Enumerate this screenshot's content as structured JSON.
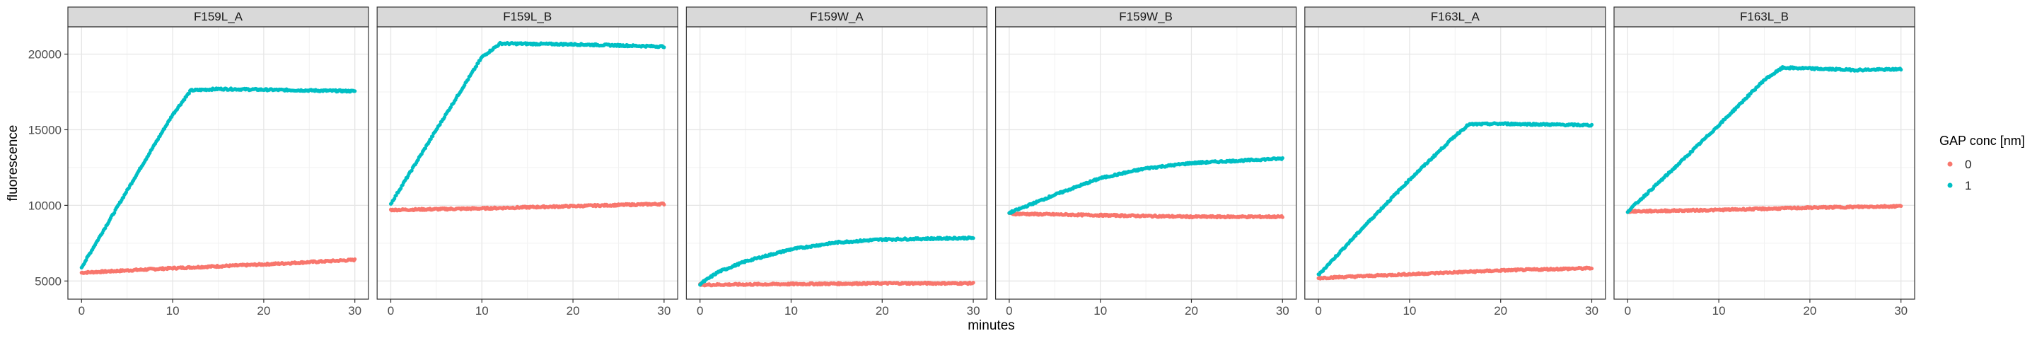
{
  "chart_data": {
    "type": "scatter",
    "facets": [
      "F159L_A",
      "F159L_B",
      "F159W_A",
      "F159W_B",
      "F163L_A",
      "F163L_B"
    ],
    "xlabel": "minutes",
    "ylabel": "fluorescence",
    "xlim": [
      -1.5,
      31.5
    ],
    "ylim": [
      3800,
      21800
    ],
    "xticks": [
      0,
      10,
      20,
      30
    ],
    "yticks": [
      5000,
      10000,
      15000,
      20000
    ],
    "grid": true,
    "legend": {
      "title": "GAP conc [nm]",
      "position": "right",
      "entries": [
        {
          "label": "0",
          "color": "#F8766D"
        },
        {
          "label": "1",
          "color": "#00BFC4"
        }
      ]
    },
    "series_colors": {
      "0": "#F8766D",
      "1": "#00BFC4"
    },
    "panels": [
      {
        "facet": "F159L_A",
        "series": [
          {
            "gap": "0",
            "points": [
              [
                0,
                5550
              ],
              [
                10,
                5850
              ],
              [
                20,
                6100
              ],
              [
                30,
                6400
              ]
            ]
          },
          {
            "gap": "1",
            "points": [
              [
                0,
                5900
              ],
              [
                6,
                12000
              ],
              [
                10,
                16000
              ],
              [
                12,
                17600
              ],
              [
                15,
                17700
              ],
              [
                20,
                17650
              ],
              [
                25,
                17600
              ],
              [
                30,
                17550
              ]
            ]
          }
        ]
      },
      {
        "facet": "F159L_B",
        "series": [
          {
            "gap": "0",
            "points": [
              [
                0,
                9700
              ],
              [
                10,
                9800
              ],
              [
                20,
                9950
              ],
              [
                30,
                10100
              ]
            ]
          },
          {
            "gap": "1",
            "points": [
              [
                0,
                10100
              ],
              [
                5,
                15000
              ],
              [
                10,
                19800
              ],
              [
                12,
                20700
              ],
              [
                20,
                20650
              ],
              [
                30,
                20500
              ]
            ]
          }
        ]
      },
      {
        "facet": "F159W_A",
        "series": [
          {
            "gap": "0",
            "points": [
              [
                0,
                4750
              ],
              [
                10,
                4800
              ],
              [
                20,
                4850
              ],
              [
                30,
                4850
              ]
            ]
          },
          {
            "gap": "1",
            "points": [
              [
                0,
                4800
              ],
              [
                2,
                5600
              ],
              [
                5,
                6300
              ],
              [
                10,
                7100
              ],
              [
                15,
                7550
              ],
              [
                20,
                7750
              ],
              [
                25,
                7800
              ],
              [
                30,
                7850
              ]
            ]
          }
        ]
      },
      {
        "facet": "F159W_B",
        "series": [
          {
            "gap": "0",
            "points": [
              [
                0,
                9450
              ],
              [
                10,
                9350
              ],
              [
                20,
                9250
              ],
              [
                30,
                9250
              ]
            ]
          },
          {
            "gap": "1",
            "points": [
              [
                0,
                9500
              ],
              [
                5,
                10700
              ],
              [
                10,
                11800
              ],
              [
                15,
                12450
              ],
              [
                20,
                12800
              ],
              [
                25,
                12950
              ],
              [
                30,
                13100
              ]
            ]
          }
        ]
      },
      {
        "facet": "F163L_A",
        "series": [
          {
            "gap": "0",
            "points": [
              [
                0,
                5200
              ],
              [
                10,
                5450
              ],
              [
                20,
                5700
              ],
              [
                30,
                5850
              ]
            ]
          },
          {
            "gap": "1",
            "points": [
              [
                0,
                5400
              ],
              [
                5,
                8600
              ],
              [
                10,
                11700
              ],
              [
                15,
                14600
              ],
              [
                16.5,
                15350
              ],
              [
                20,
                15400
              ],
              [
                25,
                15350
              ],
              [
                30,
                15300
              ]
            ]
          }
        ]
      },
      {
        "facet": "F163L_B",
        "series": [
          {
            "gap": "0",
            "points": [
              [
                0,
                9600
              ],
              [
                10,
                9700
              ],
              [
                20,
                9850
              ],
              [
                30,
                9950
              ]
            ]
          },
          {
            "gap": "1",
            "points": [
              [
                0,
                9600
              ],
              [
                5,
                12400
              ],
              [
                10,
                15300
              ],
              [
                15,
                18300
              ],
              [
                17,
                19100
              ],
              [
                20,
                19050
              ],
              [
                25,
                18950
              ],
              [
                30,
                19000
              ]
            ]
          }
        ]
      }
    ]
  }
}
